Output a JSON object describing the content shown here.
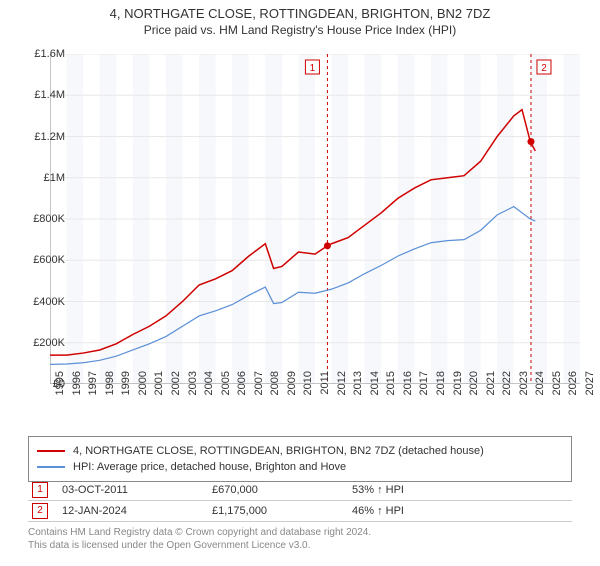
{
  "title": "4, NORTHGATE CLOSE, ROTTINGDEAN, BRIGHTON, BN2 7DZ",
  "subtitle": "Price paid vs. HM Land Registry's House Price Index (HPI)",
  "chart": {
    "type": "line",
    "xlim": [
      1995,
      2027
    ],
    "ylim": [
      0,
      1600000
    ],
    "ytick_step": 200000,
    "yticks_labels": [
      "£0",
      "£200K",
      "£400K",
      "£600K",
      "£800K",
      "£1M",
      "£1.2M",
      "£1.4M",
      "£1.6M"
    ],
    "xticks": [
      1995,
      1996,
      1997,
      1998,
      1999,
      2000,
      2001,
      2002,
      2003,
      2004,
      2005,
      2006,
      2007,
      2008,
      2009,
      2010,
      2011,
      2012,
      2013,
      2014,
      2015,
      2016,
      2017,
      2018,
      2019,
      2020,
      2021,
      2022,
      2023,
      2024,
      2025,
      2026,
      2027
    ],
    "background_color": "#ffffff",
    "alt_band_color": "#f6f8fb",
    "grid_color": "#e8e8e8",
    "series": [
      {
        "name": "4, NORTHGATE CLOSE, ROTTINGDEAN, BRIGHTON, BN2 7DZ (detached house)",
        "color": "#d00000",
        "line_width": 1.5,
        "data": [
          [
            1995,
            140000
          ],
          [
            1996,
            140000
          ],
          [
            1997,
            150000
          ],
          [
            1998,
            165000
          ],
          [
            1999,
            195000
          ],
          [
            2000,
            240000
          ],
          [
            2001,
            280000
          ],
          [
            2002,
            330000
          ],
          [
            2003,
            400000
          ],
          [
            2004,
            480000
          ],
          [
            2005,
            510000
          ],
          [
            2006,
            550000
          ],
          [
            2007,
            620000
          ],
          [
            2008,
            680000
          ],
          [
            2008.5,
            560000
          ],
          [
            2009,
            570000
          ],
          [
            2010,
            640000
          ],
          [
            2011,
            630000
          ],
          [
            2011.75,
            670000
          ],
          [
            2012,
            680000
          ],
          [
            2013,
            710000
          ],
          [
            2014,
            770000
          ],
          [
            2015,
            830000
          ],
          [
            2016,
            900000
          ],
          [
            2017,
            950000
          ],
          [
            2018,
            990000
          ],
          [
            2019,
            1000000
          ],
          [
            2020,
            1010000
          ],
          [
            2021,
            1080000
          ],
          [
            2022,
            1200000
          ],
          [
            2023,
            1300000
          ],
          [
            2023.5,
            1330000
          ],
          [
            2024,
            1175000
          ],
          [
            2024.3,
            1130000
          ]
        ]
      },
      {
        "name": "HPI: Average price, detached house, Brighton and Hove",
        "color": "#5b8fd6",
        "line_width": 1.2,
        "data": [
          [
            1995,
            95000
          ],
          [
            1996,
            97000
          ],
          [
            1997,
            103000
          ],
          [
            1998,
            115000
          ],
          [
            1999,
            135000
          ],
          [
            2000,
            165000
          ],
          [
            2001,
            195000
          ],
          [
            2002,
            230000
          ],
          [
            2003,
            280000
          ],
          [
            2004,
            330000
          ],
          [
            2005,
            355000
          ],
          [
            2006,
            385000
          ],
          [
            2007,
            430000
          ],
          [
            2008,
            470000
          ],
          [
            2008.5,
            390000
          ],
          [
            2009,
            395000
          ],
          [
            2010,
            445000
          ],
          [
            2011,
            440000
          ],
          [
            2012,
            460000
          ],
          [
            2013,
            490000
          ],
          [
            2014,
            535000
          ],
          [
            2015,
            575000
          ],
          [
            2016,
            620000
          ],
          [
            2017,
            655000
          ],
          [
            2018,
            685000
          ],
          [
            2019,
            695000
          ],
          [
            2020,
            700000
          ],
          [
            2021,
            745000
          ],
          [
            2022,
            820000
          ],
          [
            2023,
            860000
          ],
          [
            2024,
            800000
          ],
          [
            2024.3,
            790000
          ]
        ]
      }
    ],
    "markers": [
      {
        "n": "1",
        "x": 2011.75,
        "y": 670000,
        "color": "#d00000"
      },
      {
        "n": "2",
        "x": 2024.04,
        "y": 1175000,
        "color": "#d00000"
      }
    ],
    "marker_lines": [
      {
        "x": 2011.75,
        "color": "#d00000",
        "dash": "3,3"
      },
      {
        "x": 2024.04,
        "color": "#d00000",
        "dash": "3,3"
      }
    ]
  },
  "legend": {
    "items": [
      {
        "color": "#d00000",
        "label": "4, NORTHGATE CLOSE, ROTTINGDEAN, BRIGHTON, BN2 7DZ (detached house)"
      },
      {
        "color": "#5b8fd6",
        "label": "HPI: Average price, detached house, Brighton and Hove"
      }
    ]
  },
  "marker_rows": [
    {
      "n": "1",
      "date": "03-OCT-2011",
      "price": "£670,000",
      "hpi": "53% ↑ HPI"
    },
    {
      "n": "2",
      "date": "12-JAN-2024",
      "price": "£1,175,000",
      "hpi": "46% ↑ HPI"
    }
  ],
  "footer_line1": "Contains HM Land Registry data © Crown copyright and database right 2024.",
  "footer_line2": "This data is licensed under the Open Government Licence v3.0."
}
